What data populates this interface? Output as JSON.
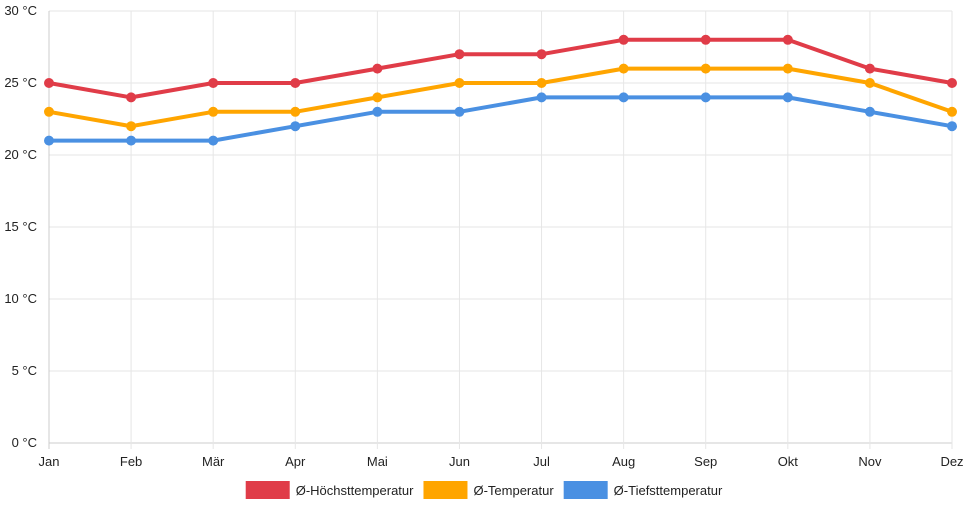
{
  "chart_data": {
    "type": "line",
    "title": "",
    "xlabel": "",
    "ylabel": "",
    "categories": [
      "Jan",
      "Feb",
      "Mär",
      "Apr",
      "Mai",
      "Jun",
      "Jul",
      "Aug",
      "Sep",
      "Okt",
      "Nov",
      "Dez"
    ],
    "y_ticks": [
      {
        "value": 0,
        "label": "0 °C"
      },
      {
        "value": 5,
        "label": "5 °C"
      },
      {
        "value": 10,
        "label": "10 °C"
      },
      {
        "value": 15,
        "label": "15 °C"
      },
      {
        "value": 20,
        "label": "20 °C"
      },
      {
        "value": 25,
        "label": "25 °C"
      },
      {
        "value": 30,
        "label": "30 °C"
      }
    ],
    "ylim": [
      0,
      30
    ],
    "grid": true,
    "legend_position": "bottom",
    "series": [
      {
        "name": "Ø-Höchsttemperatur",
        "color": "#e03c48",
        "values": [
          25,
          24,
          25,
          25,
          26,
          27,
          27,
          28,
          28,
          28,
          26,
          25
        ]
      },
      {
        "name": "Ø-Temperatur",
        "color": "#ffa500",
        "values": [
          23,
          22,
          23,
          23,
          24,
          25,
          25,
          26,
          26,
          26,
          25,
          23
        ]
      },
      {
        "name": "Ø-Tiefsttemperatur",
        "color": "#4a90e2",
        "values": [
          21,
          21,
          21,
          22,
          23,
          23,
          24,
          24,
          24,
          24,
          23,
          22
        ]
      }
    ]
  }
}
